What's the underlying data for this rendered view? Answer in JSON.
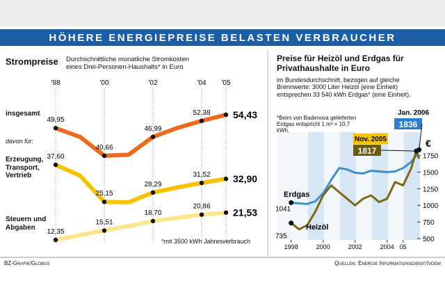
{
  "header": {
    "title": "HÖHERE ENERGIEPREISE BELASTEN VERBRAUCHER"
  },
  "chart_data": [
    {
      "type": "line",
      "title": "Strompreise",
      "subtitle": "Durchschnittliche monatliche Stromkosten eines Drei-Personen-Haushalts* in Euro",
      "categories": [
        "'98",
        null,
        "'00",
        null,
        "'02",
        null,
        "'04",
        "'05"
      ],
      "group_label": "davon für:",
      "note": "*mit 3500 kWh Jahresverbrauch",
      "series": [
        {
          "name": "insgesamt",
          "color": "#ee6a1e",
          "values": [
            49.95,
            47.0,
            40.66,
            41.0,
            46.99,
            50.0,
            52.38,
            54.43
          ],
          "value_labels": [
            "49,95",
            null,
            "40,66",
            null,
            "46,99",
            null,
            "52,38",
            "54,43"
          ]
        },
        {
          "name": "Erzeugung, Transport, Vertrieb",
          "color": "#f7c200",
          "values": [
            37.6,
            34.0,
            25.15,
            25.0,
            28.29,
            30.0,
            31.52,
            32.9
          ],
          "value_labels": [
            "37,60",
            null,
            "25,15",
            null,
            "28,29",
            null,
            "31,52",
            "32,90"
          ]
        },
        {
          "name": "Steuern und Abgaben",
          "color": "#fde58c",
          "values": [
            12.35,
            14.0,
            15.51,
            17.0,
            18.7,
            19.8,
            20.86,
            21.53
          ],
          "value_labels": [
            "12,35",
            null,
            "15,51",
            null,
            "18,70",
            null,
            "20,86",
            "21,53"
          ]
        }
      ]
    },
    {
      "type": "line",
      "title": "Preise für Heizöl und Erdgas für Privathaushalte in Euro",
      "subtitle": "im Bundesdurchschnitt, bezogen auf gleiche Brennwerte: 3000 Liter Heizöl (eine Einheit) entsprechen 33 540 kWh Erdgas* (eine Einheit).",
      "note": "*Beim von Badenova gelieferten Erdgas entspricht 1 m³ = 10,7 kWh.",
      "x": [
        1998,
        1998.5,
        1999,
        1999.5,
        2000,
        2000.5,
        2001,
        2001.5,
        2002,
        2002.5,
        2003,
        2003.5,
        2004,
        2004.5,
        2005,
        2005.5,
        2005.83,
        2006
      ],
      "xlim": [
        1997.1,
        2006.1
      ],
      "xticks": [
        1998,
        2000,
        2002,
        2004,
        {
          "value": 2005,
          "label": "05"
        }
      ],
      "ylim": [
        480,
        2100
      ],
      "yticks": [
        500,
        750,
        1000,
        1250,
        1500,
        1750
      ],
      "y_unit": "€",
      "annotations": [
        "Jan. 2006",
        "Nov. 2005"
      ],
      "series": [
        {
          "name": "Erdgas",
          "color": "#3b8fd0",
          "values": [
            1041,
            1030,
            1020,
            1060,
            1180,
            1380,
            1560,
            1540,
            1490,
            1480,
            1520,
            1510,
            1500,
            1510,
            1560,
            1650,
            1750,
            1836
          ],
          "value_labels": [
            "1041",
            null,
            null,
            null,
            null,
            null,
            null,
            null,
            null,
            null,
            null,
            null,
            null,
            null,
            null,
            null,
            null,
            "1836"
          ]
        },
        {
          "name": "Heizöl",
          "color": "#7a6812",
          "values": [
            735,
            640,
            700,
            900,
            1150,
            1300,
            1200,
            1100,
            1000,
            1100,
            1150,
            1050,
            1100,
            1350,
            1300,
            1550,
            1817,
            1700
          ],
          "value_labels": [
            "735",
            null,
            null,
            null,
            null,
            null,
            null,
            null,
            null,
            null,
            null,
            null,
            null,
            null,
            null,
            null,
            "1817",
            null
          ]
        }
      ]
    }
  ],
  "footer": {
    "left": "BZ-Grafik/Globus",
    "right": "Quellen: Energie Informationsdienst/vdew"
  }
}
